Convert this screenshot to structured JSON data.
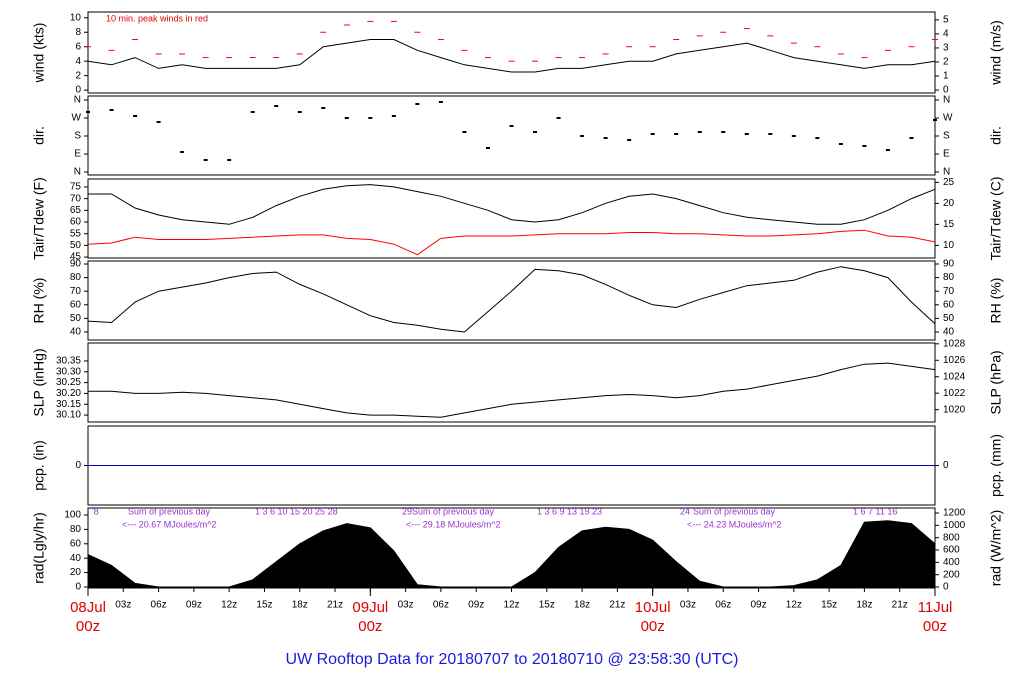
{
  "title": "UW Rooftop Data for 20180707  to  20180710 @ 23:58:30  (UTC)",
  "chart_data": [
    {
      "type": "line",
      "ylabel": "wind (kts)",
      "y2label": "wind (m/s)",
      "annotation": "10 min. peak winds in red",
      "xlim": [
        0,
        72
      ],
      "ylim": [
        -0.4,
        10.8
      ],
      "yticks": [
        0,
        2,
        4,
        6,
        8,
        10
      ],
      "y2lim": [
        -0.21,
        5.56
      ],
      "y2ticks": [
        0,
        1,
        2,
        3,
        4,
        5
      ],
      "x": [
        0,
        2,
        4,
        6,
        8,
        10,
        12,
        14,
        16,
        18,
        20,
        22,
        24,
        26,
        28,
        30,
        32,
        34,
        36,
        38,
        40,
        42,
        44,
        46,
        48,
        50,
        52,
        54,
        56,
        58,
        60,
        62,
        64,
        66,
        68,
        70,
        72
      ],
      "series": [
        {
          "color": "#000000",
          "style": "line",
          "values": [
            4,
            3.5,
            4.5,
            3,
            3.5,
            3,
            3,
            3,
            3,
            3.5,
            6,
            6.5,
            7,
            7,
            5.5,
            4.5,
            3.5,
            3,
            2.5,
            2.5,
            3,
            3,
            3.5,
            4,
            4,
            5,
            5.5,
            6,
            6.5,
            5.5,
            4.5,
            4,
            3.5,
            3,
            3.5,
            3.5,
            4
          ]
        },
        {
          "color": "#ff0000",
          "style": "dash",
          "values": [
            6,
            5.5,
            7,
            5,
            5,
            4.5,
            4.5,
            4.5,
            4.5,
            5,
            8,
            9,
            9.5,
            9.5,
            8,
            7,
            5.5,
            4.5,
            4,
            4,
            4.5,
            4.5,
            5,
            6,
            6,
            7,
            7.5,
            8,
            8.5,
            7.5,
            6.5,
            6,
            5,
            4.5,
            5.5,
            6,
            7
          ]
        }
      ]
    },
    {
      "type": "scatter",
      "ylabel": "dir.",
      "y2label": "dir.",
      "xlim": [
        0,
        72
      ],
      "ylim": [
        -15,
        380
      ],
      "yticks": [
        {
          "value": 0,
          "label": "N"
        },
        {
          "value": 90,
          "label": "E"
        },
        {
          "value": 180,
          "label": "S"
        },
        {
          "value": 270,
          "label": "W"
        },
        {
          "value": 360,
          "label": "N"
        }
      ],
      "y2lim": [
        -15,
        380
      ],
      "y2ticks": [
        {
          "value": 0,
          "label": "N"
        },
        {
          "value": 90,
          "label": "E"
        },
        {
          "value": 180,
          "label": "S"
        },
        {
          "value": 270,
          "label": "W"
        },
        {
          "value": 360,
          "label": "N"
        }
      ],
      "x": [
        0,
        2,
        4,
        6,
        8,
        10,
        12,
        14,
        16,
        18,
        20,
        22,
        24,
        26,
        28,
        30,
        32,
        34,
        36,
        38,
        40,
        42,
        44,
        46,
        48,
        50,
        52,
        54,
        56,
        58,
        60,
        62,
        64,
        66,
        68,
        70,
        72
      ],
      "series": [
        {
          "color": "#000000",
          "values": [
            300,
            310,
            280,
            250,
            100,
            60,
            60,
            300,
            330,
            300,
            320,
            270,
            270,
            280,
            340,
            350,
            200,
            120,
            230,
            200,
            270,
            180,
            170,
            160,
            190,
            190,
            200,
            200,
            190,
            190,
            180,
            170,
            140,
            130,
            110,
            170,
            260
          ]
        }
      ]
    },
    {
      "type": "line",
      "ylabel": "Tair/Tdew (F)",
      "y2label": "Tair/Tdew (C)",
      "xlim": [
        0,
        72
      ],
      "ylim": [
        44.6,
        78.4
      ],
      "yticks": [
        45,
        50,
        55,
        60,
        65,
        70,
        75
      ],
      "y2lim": [
        7.0,
        25.8
      ],
      "y2ticks": [
        10,
        15,
        20,
        25
      ],
      "x": [
        0,
        2,
        4,
        6,
        8,
        10,
        12,
        14,
        16,
        18,
        20,
        22,
        24,
        26,
        28,
        30,
        32,
        34,
        36,
        38,
        40,
        42,
        44,
        46,
        48,
        50,
        52,
        54,
        56,
        58,
        60,
        62,
        64,
        66,
        68,
        70,
        72
      ],
      "series": [
        {
          "color": "#000000",
          "style": "line",
          "values": [
            72,
            72,
            66,
            63,
            61,
            60,
            59,
            62,
            67,
            71,
            74,
            75.5,
            76,
            75,
            73,
            71,
            68,
            65,
            61,
            60,
            61,
            64,
            68,
            71,
            72,
            70,
            67,
            64,
            62,
            61,
            60,
            59,
            59,
            61,
            65,
            70,
            74
          ]
        },
        {
          "color": "#ff0000",
          "style": "line",
          "values": [
            50.5,
            51,
            53.5,
            52.5,
            52.5,
            52.5,
            53,
            53.5,
            54,
            54.5,
            54.5,
            53,
            52.5,
            50.5,
            46,
            53,
            54,
            54,
            54,
            54.5,
            55,
            55,
            55,
            55.5,
            55.5,
            55,
            55,
            54.5,
            54,
            54,
            54.5,
            55,
            56,
            56.5,
            54,
            53.5,
            51.5
          ]
        }
      ]
    },
    {
      "type": "line",
      "ylabel": "RH (%)",
      "y2label": "RH (%)",
      "xlim": [
        0,
        72
      ],
      "ylim": [
        34.1,
        92.2
      ],
      "yticks": [
        40,
        50,
        60,
        70,
        80,
        90
      ],
      "y2lim": [
        34.1,
        92.2
      ],
      "y2ticks": [
        40,
        50,
        60,
        70,
        80,
        90
      ],
      "x": [
        0,
        2,
        4,
        6,
        8,
        10,
        12,
        14,
        16,
        18,
        20,
        22,
        24,
        26,
        28,
        30,
        32,
        34,
        36,
        38,
        40,
        42,
        44,
        46,
        48,
        50,
        52,
        54,
        56,
        58,
        60,
        62,
        64,
        66,
        68,
        70,
        72
      ],
      "series": [
        {
          "color": "#000000",
          "style": "line",
          "values": [
            48,
            47,
            62,
            70,
            73,
            76,
            80,
            83,
            84,
            75,
            68,
            60,
            52,
            47,
            45,
            42,
            40,
            55,
            70,
            86,
            85,
            82,
            75,
            67,
            60,
            58,
            64,
            69,
            74,
            76,
            78,
            84,
            88,
            85,
            80,
            62,
            46
          ]
        }
      ]
    },
    {
      "type": "line",
      "ylabel": "SLP (inHg)",
      "y2label": "SLP (hPa)",
      "xlim": [
        0,
        72
      ],
      "ylim": [
        30.068,
        30.433
      ],
      "yticks": [
        {
          "value": 30.1,
          "label": "30.10"
        },
        {
          "value": 30.15,
          "label": "30.15"
        },
        {
          "value": 30.2,
          "label": "30.20"
        },
        {
          "value": 30.25,
          "label": "30.25"
        },
        {
          "value": 30.3,
          "label": "30.30"
        },
        {
          "value": 30.35,
          "label": "30.35"
        }
      ],
      "y2lim": [
        1018.5,
        1028.1
      ],
      "y2ticks": [
        1020,
        1022,
        1024,
        1026,
        1028
      ],
      "x": [
        0,
        2,
        4,
        6,
        8,
        10,
        12,
        14,
        16,
        18,
        20,
        22,
        24,
        26,
        28,
        30,
        32,
        34,
        36,
        38,
        40,
        42,
        44,
        46,
        48,
        50,
        52,
        54,
        56,
        58,
        60,
        62,
        64,
        66,
        68,
        70,
        72
      ],
      "series": [
        {
          "color": "#000000",
          "style": "line",
          "values": [
            30.21,
            30.21,
            30.2,
            30.2,
            30.205,
            30.2,
            30.19,
            30.18,
            30.17,
            30.15,
            30.13,
            30.11,
            30.1,
            30.1,
            30.095,
            30.09,
            30.11,
            30.13,
            30.15,
            30.16,
            30.17,
            30.18,
            30.19,
            30.195,
            30.19,
            30.18,
            30.19,
            30.21,
            30.22,
            30.24,
            30.26,
            30.28,
            30.31,
            30.335,
            30.34,
            30.325,
            30.31
          ]
        }
      ]
    },
    {
      "type": "line",
      "ylabel": "pcp. (in)",
      "y2label": "pcp. (mm)",
      "xlim": [
        0,
        72
      ],
      "ylim": [
        -1,
        1
      ],
      "yticks": [
        0
      ],
      "y2lim": [
        -1,
        1
      ],
      "y2ticks": [
        0
      ],
      "x": [
        0,
        72
      ],
      "series": [
        {
          "color": "#0000cc",
          "style": "line",
          "values": [
            0,
            0
          ]
        }
      ]
    },
    {
      "type": "area",
      "ylabel": "rad(Lgly/hr)",
      "y2label": "rad (W/m^2)",
      "xlim": [
        0,
        72
      ],
      "ylim": [
        -1.4,
        109.7
      ],
      "yticks": [
        0,
        20,
        40,
        60,
        80,
        100
      ],
      "y2lim": [
        -16,
        1281
      ],
      "y2ticks": [
        0,
        200,
        400,
        600,
        800,
        1000,
        1200
      ],
      "annotations": [
        "'8",
        "Sum of previous day",
        "<--- 20.67 MJoules/m^2",
        "1   3   6   10   15   20   25   28",
        "29",
        "Sum of previous day",
        "<--- 29.18 MJoules/m^2",
        "1   3   6   9   13   19   23",
        "24",
        "Sum of previous day",
        "<--- 24.23 MJoules/m^2",
        "1   6   7   11   16"
      ],
      "x": [
        0,
        2,
        4,
        6,
        8,
        10,
        12,
        14,
        16,
        18,
        20,
        22,
        24,
        26,
        28,
        30,
        32,
        34,
        36,
        38,
        40,
        42,
        44,
        46,
        48,
        50,
        52,
        54,
        56,
        58,
        60,
        62,
        64,
        66,
        68,
        70,
        72
      ],
      "series": [
        {
          "color": "#000000",
          "values": [
            45,
            30,
            5,
            0,
            0,
            0,
            0,
            10,
            35,
            60,
            78,
            88,
            82,
            50,
            3,
            0,
            0,
            0,
            0,
            20,
            55,
            78,
            83,
            80,
            65,
            35,
            8,
            0,
            0,
            0,
            2,
            10,
            30,
            90,
            92,
            88,
            60
          ]
        }
      ],
      "xticks": [
        {
          "value": 0,
          "label": "00z"
        },
        {
          "value": 3,
          "label": "03z"
        },
        {
          "value": 6,
          "label": "06z"
        },
        {
          "value": 9,
          "label": "09z"
        },
        {
          "value": 12,
          "label": "12z"
        },
        {
          "value": 15,
          "label": "15z"
        },
        {
          "value": 18,
          "label": "18z"
        },
        {
          "value": 21,
          "label": "21z"
        },
        {
          "value": 24,
          "label": "00z"
        },
        {
          "value": 27,
          "label": "03z"
        },
        {
          "value": 30,
          "label": "06z"
        },
        {
          "value": 33,
          "label": "09z"
        },
        {
          "value": 36,
          "label": "12z"
        },
        {
          "value": 39,
          "label": "15z"
        },
        {
          "value": 42,
          "label": "18z"
        },
        {
          "value": 45,
          "label": "21z"
        },
        {
          "value": 48,
          "label": "00z"
        },
        {
          "value": 51,
          "label": "03z"
        },
        {
          "value": 54,
          "label": "06z"
        },
        {
          "value": 57,
          "label": "09z"
        },
        {
          "value": 60,
          "label": "12z"
        },
        {
          "value": 63,
          "label": "15z"
        },
        {
          "value": 66,
          "label": "18z"
        },
        {
          "value": 69,
          "label": "21z"
        },
        {
          "value": 72,
          "label": "00z"
        }
      ],
      "xdates": [
        {
          "value": 0,
          "label": "08Jul"
        },
        {
          "value": 24,
          "label": "09Jul"
        },
        {
          "value": 48,
          "label": "10Jul"
        },
        {
          "value": 72,
          "label": "11Jul"
        }
      ]
    }
  ]
}
